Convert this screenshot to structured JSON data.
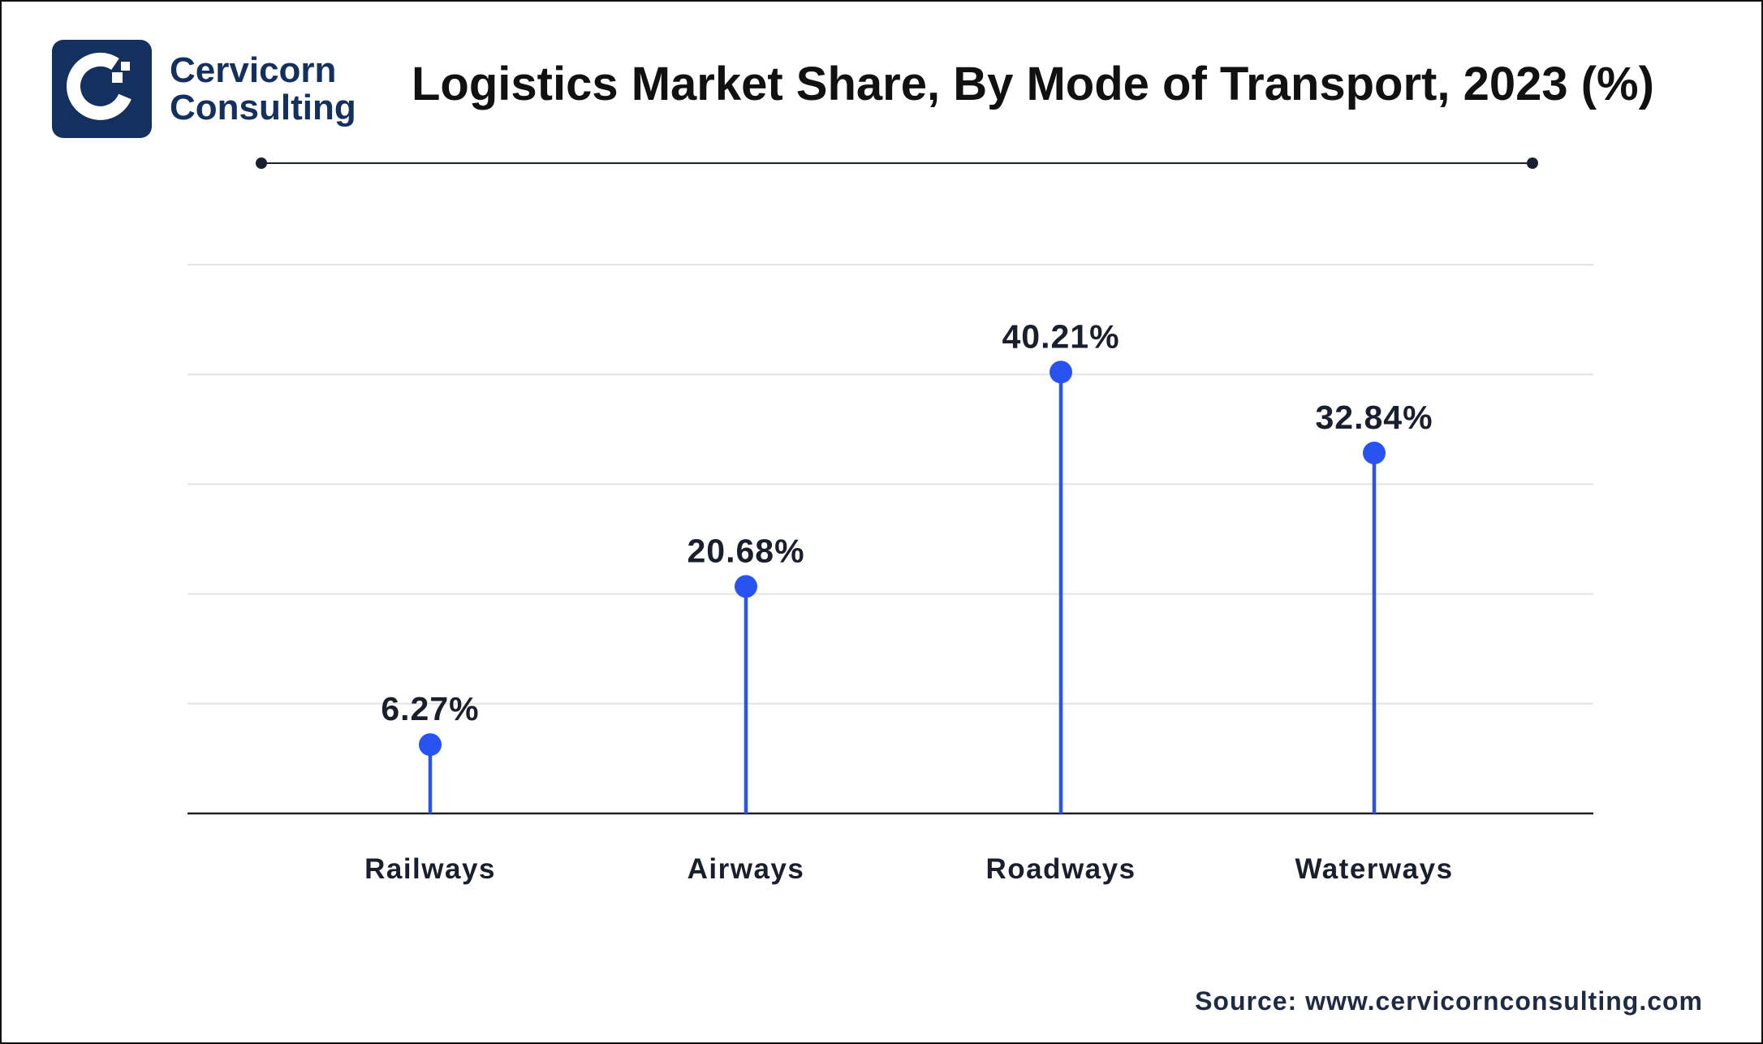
{
  "logo": {
    "line1": "Cervicorn",
    "line2": "Consulting"
  },
  "title": "Logistics Market Share, By Mode of Transport, 2023 (%)",
  "source": "Source: www.cervicornconsulting.com",
  "colors": {
    "accent": "#2853f0",
    "navy": "#14305f",
    "grid": "#e4e4e4"
  },
  "chart_data": {
    "type": "lollipop",
    "title": "Logistics Market Share, By Mode of Transport, 2023 (%)",
    "categories": [
      "Railways",
      "Airways",
      "Roadways",
      "Waterways"
    ],
    "values": [
      6.27,
      20.68,
      40.21,
      32.84
    ],
    "labels": [
      "6.27%",
      "20.68%",
      "40.21%",
      "32.84%"
    ],
    "xlabel": "",
    "ylabel": "",
    "ylim": [
      0,
      50
    ],
    "grid": true
  }
}
